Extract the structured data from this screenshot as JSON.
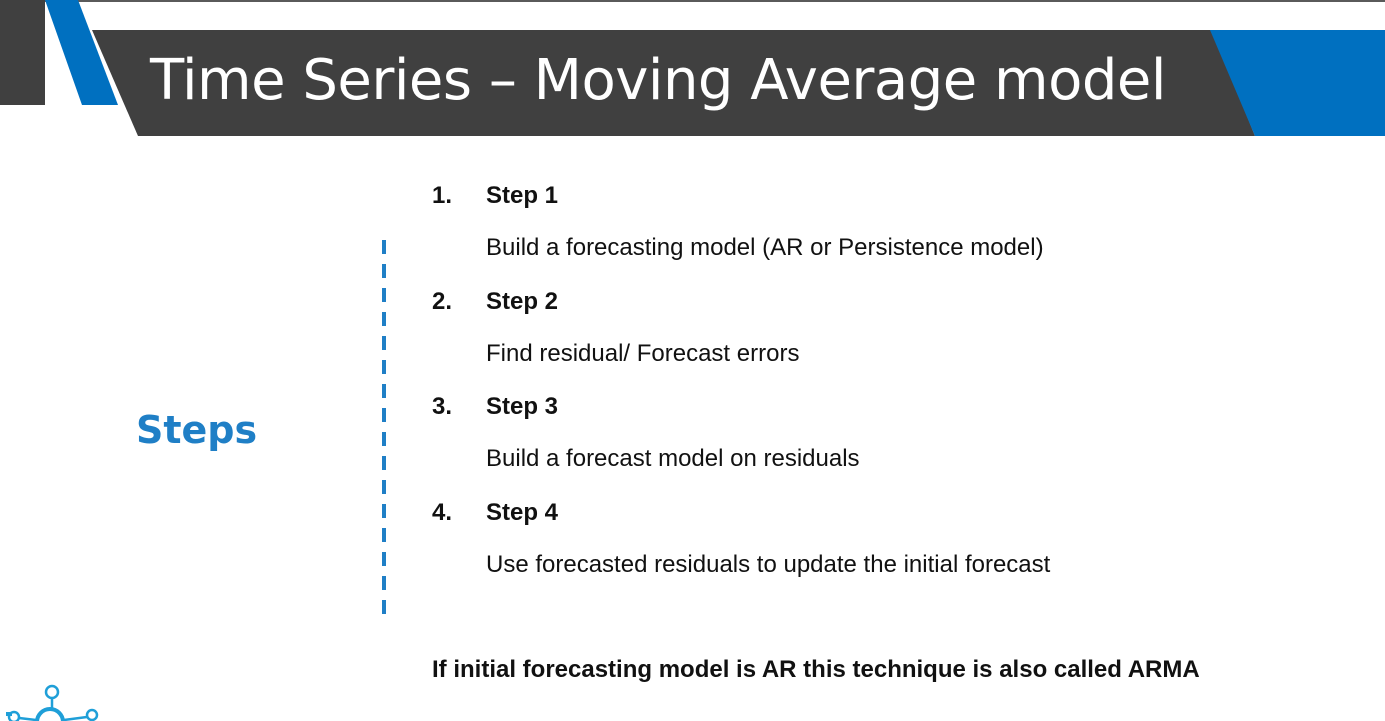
{
  "slide": {
    "title": "Time Series – Moving Average model",
    "side_label": "Steps",
    "steps": [
      {
        "number": "1.",
        "title": "Step 1",
        "description": "Build a forecasting model (AR or Persistence model)"
      },
      {
        "number": "2.",
        "title": "Step 2",
        "description": "Find residual/ Forecast errors"
      },
      {
        "number": "3.",
        "title": "Step 3",
        "description": "Build a forecast model on residuals"
      },
      {
        "number": "4.",
        "title": "Step 4",
        "description": "Use forecasted residuals to update the initial forecast"
      }
    ],
    "footnote": "If initial forecasting model is AR this technique is also called ARMA"
  },
  "colors": {
    "title_bar": "#404040",
    "accent_blue": "#0070c0",
    "label_blue": "#1f7fc6",
    "text": "#111111"
  },
  "icons": {
    "logo": "lightbulb-network-logo-icon"
  }
}
